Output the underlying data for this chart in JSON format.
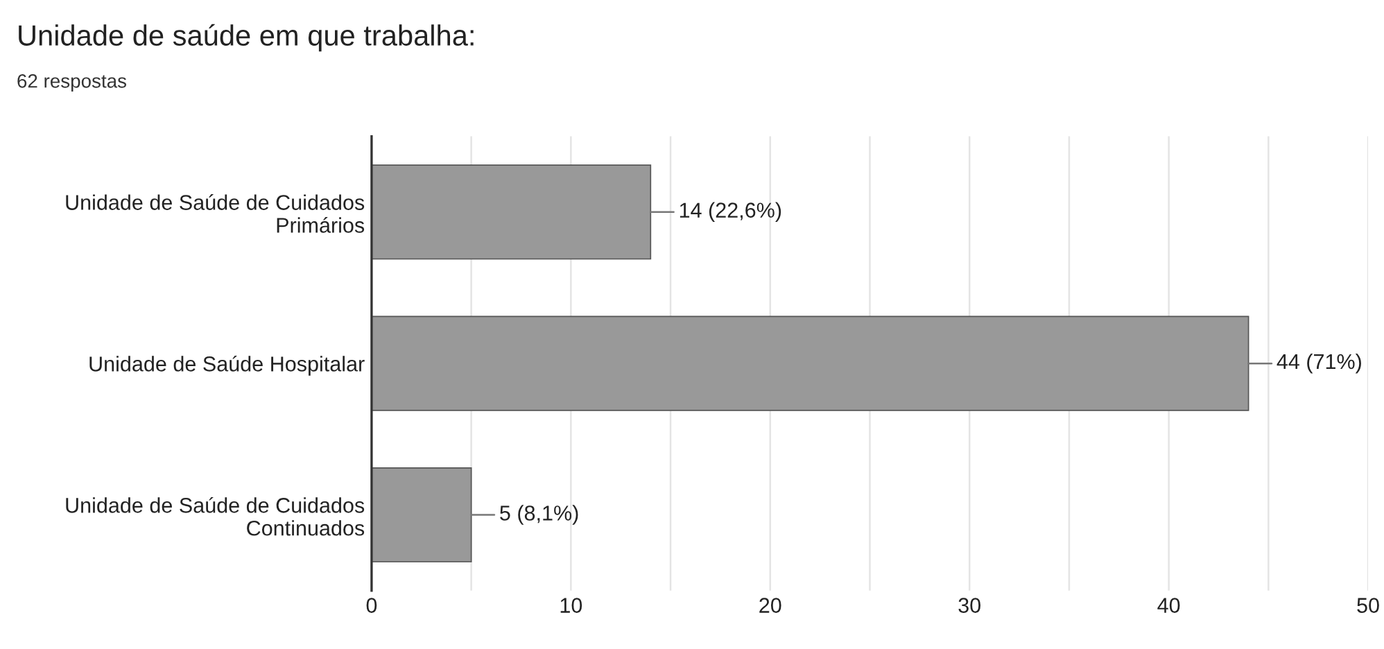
{
  "chart_data": {
    "type": "bar",
    "orientation": "horizontal",
    "title": "Unidade de saúde em que trabalha:",
    "subtitle": "62 respostas",
    "categories": [
      "Unidade de Saúde de Cuidados\nPrimários",
      "Unidade de Saúde Hospitalar",
      "Unidade de Saúde de Cuidados\nContinuados"
    ],
    "values": [
      14,
      44,
      5
    ],
    "color": "#999999",
    "value_labels": [
      "14 (22,6%)",
      "44 (71%)",
      "5 (8,1%)"
    ],
    "xlim": [
      0,
      50
    ],
    "xticks": [
      0,
      {
        "value": 5,
        "label": null
      },
      10,
      {
        "value": 15,
        "label": null
      },
      20,
      {
        "value": 25,
        "label": null
      },
      30,
      {
        "value": 35,
        "label": null
      },
      40,
      {
        "value": 45,
        "label": null
      },
      50
    ],
    "grid": "x",
    "legend": false
  }
}
